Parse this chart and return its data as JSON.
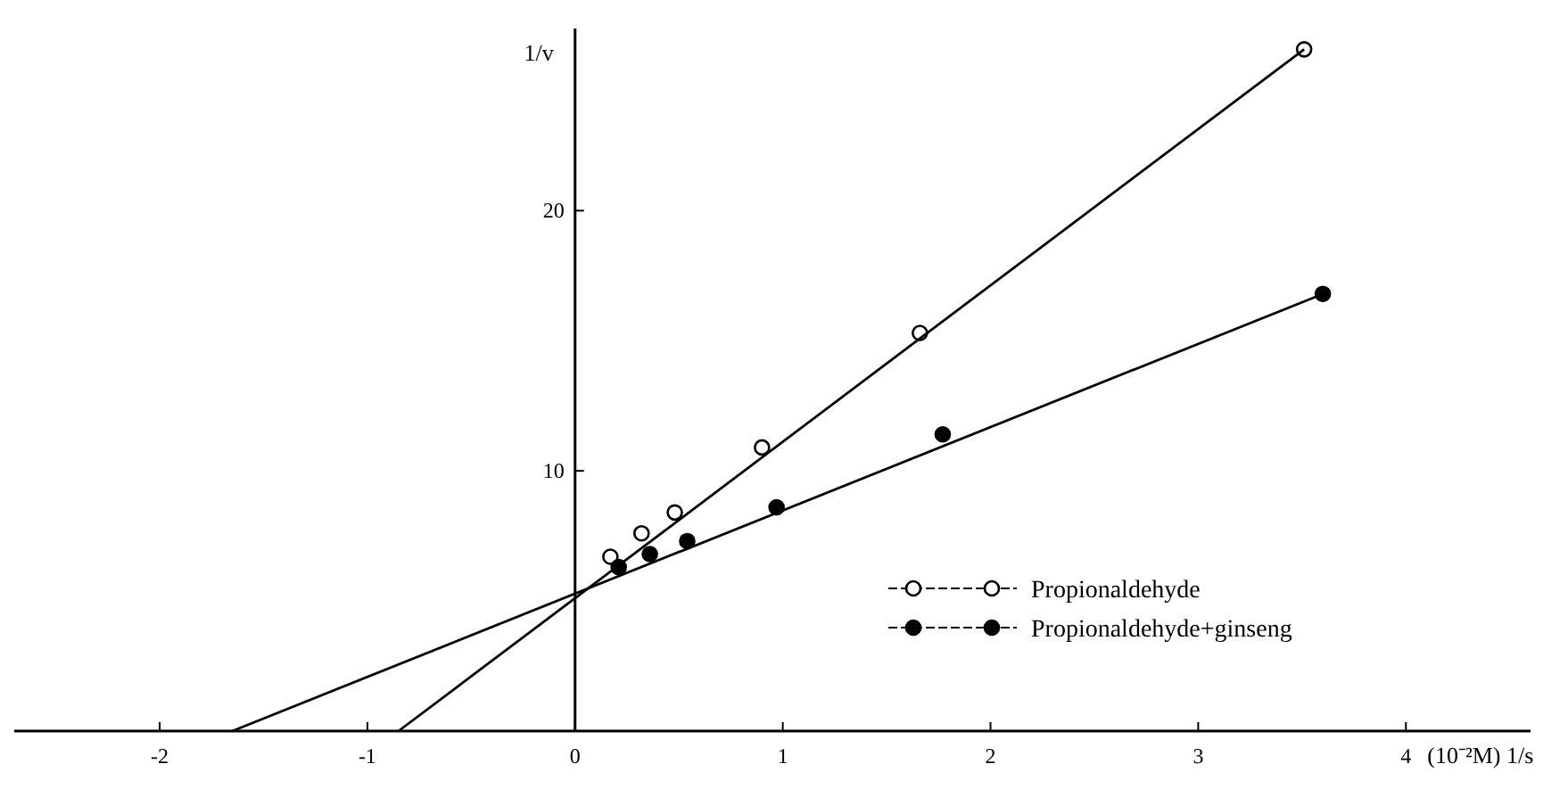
{
  "chart_data": {
    "type": "scatter",
    "xlabel": "(10⁻²M) 1/s",
    "ylabel": "1/v",
    "xlim": [
      -2.7,
      4.6
    ],
    "ylim": [
      0,
      27
    ],
    "xticks": [
      -2,
      -1,
      0,
      1,
      2,
      3,
      4
    ],
    "yticks": [
      10,
      20
    ],
    "marker": "circle",
    "legend": "bottom right",
    "grid": false,
    "series": [
      {
        "name": "Propionaldehyde",
        "color": "#ffffff",
        "x": [
          0.17,
          0.32,
          0.48,
          0.9,
          1.66,
          3.51
        ],
        "values": [
          6.7,
          7.6,
          8.4,
          10.9,
          15.3,
          26.2
        ]
      },
      {
        "name": "Propionaldehyde+ginseng",
        "color": "#000000",
        "x": [
          0.21,
          0.36,
          0.54,
          0.97,
          1.77,
          3.6
        ],
        "values": [
          6.3,
          6.8,
          7.3,
          8.6,
          11.4,
          16.8
        ]
      },
      {
        "type": "line",
        "marker": "none",
        "color": "#000000",
        "x": [
          -0.85,
          3.51
        ],
        "values": [
          0,
          26.2
        ]
      },
      {
        "type": "line",
        "marker": "none",
        "color": "#000000",
        "x": [
          -1.65,
          3.6
        ],
        "values": [
          0,
          16.8
        ]
      }
    ]
  }
}
